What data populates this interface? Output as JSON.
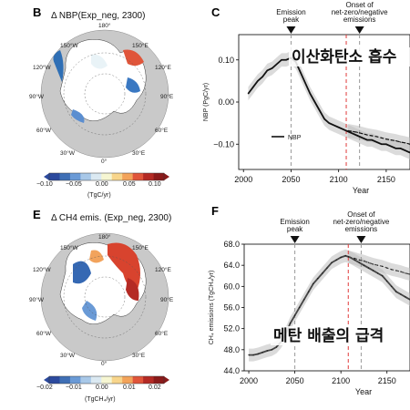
{
  "panels": {
    "B": {
      "letter": "B",
      "title": "Δ NBP(Exp_neg, 2300)",
      "colorbar_ticks": [
        "−0.10",
        "−0.05",
        "0.00",
        "0.05",
        "0.10"
      ],
      "colorbar_unit": "(TgC/yr)",
      "map_labels": {
        "top": "180°",
        "l1": "150°W",
        "r1": "150°E",
        "l2": "120°W",
        "r2": "120°E",
        "l3": "90°W",
        "r3": "90°E",
        "l4": "60°W",
        "r4": "60°E",
        "l5": "30°W",
        "r5": "30°E",
        "bottom": "0°"
      }
    },
    "E": {
      "letter": "E",
      "title": "Δ CH4 emis. (Exp_neg, 2300)",
      "colorbar_ticks": [
        "−0.02",
        "−0.01",
        "0.00",
        "0.01",
        "0.02"
      ],
      "colorbar_unit": "(TgCH₄/yr)",
      "map_labels": {
        "top": "180°",
        "l1": "150°W",
        "r1": "150°E",
        "l2": "120°W",
        "r2": "120°E",
        "l3": "90°W",
        "r3": "90°E",
        "l4": "60°W",
        "r4": "60°E",
        "l5": "30°W",
        "r5": "30°E",
        "bottom": "0°"
      }
    }
  },
  "chart_data": [
    {
      "panel": "C",
      "type": "line",
      "ylabel": "NBP (PgC/yr)",
      "xlabel": "Year",
      "xlim": [
        1995,
        2175
      ],
      "ylim": [
        -0.16,
        0.16
      ],
      "xticks": [
        2000,
        2050,
        2100,
        2150
      ],
      "yticks": [
        0.1,
        0.0,
        -0.1
      ],
      "ytick_labels": [
        "0.10",
        "0.00",
        "−0.10"
      ],
      "legend": "NBP",
      "annotations": [
        {
          "text": "Emission\npeak",
          "x": 2050
        },
        {
          "text": "Onset of\nnet-zero/negative\nemissions",
          "x": 2122
        }
      ],
      "vlines": [
        {
          "x": 2050,
          "style": "dashed-gray"
        },
        {
          "x": 2108,
          "style": "dashed-red"
        },
        {
          "x": 2122,
          "style": "dashed-gray"
        }
      ],
      "overlay_text": "이산화탄소 흡수",
      "series": [
        {
          "x": [
            2005,
            2010,
            2015,
            2020,
            2025,
            2030,
            2035,
            2040,
            2045,
            2050,
            2055,
            2060,
            2065,
            2070,
            2075,
            2080,
            2085,
            2090,
            2095,
            2100,
            2105,
            2110,
            2115,
            2120,
            2125,
            2130,
            2135,
            2140,
            2145,
            2150,
            2155,
            2160,
            2165,
            2170,
            2175
          ],
          "y": [
            0.02,
            0.035,
            0.05,
            0.06,
            0.075,
            0.08,
            0.09,
            0.1,
            0.1,
            0.105,
            0.095,
            0.07,
            0.045,
            0.02,
            0.0,
            -0.02,
            -0.04,
            -0.05,
            -0.055,
            -0.06,
            -0.065,
            -0.07,
            -0.075,
            -0.08,
            -0.085,
            -0.09,
            -0.09,
            -0.095,
            -0.1,
            -0.1,
            -0.105,
            -0.11,
            -0.11,
            -0.115,
            -0.12
          ]
        },
        {
          "x": [
            2110,
            2115,
            2120,
            2125,
            2130,
            2135,
            2140,
            2145,
            2150,
            2155,
            2160,
            2165,
            2170,
            2175
          ],
          "y": [
            -0.068,
            -0.07,
            -0.072,
            -0.075,
            -0.078,
            -0.08,
            -0.082,
            -0.085,
            -0.088,
            -0.09,
            -0.092,
            -0.095,
            -0.097,
            -0.1
          ]
        }
      ]
    },
    {
      "panel": "F",
      "type": "line",
      "ylabel": "CH₄ emissions (TgCH₄/yr)",
      "xlabel": "Year",
      "xlim": [
        1995,
        2175
      ],
      "ylim": [
        44.0,
        68.0
      ],
      "xticks": [
        2000,
        2050,
        2100,
        2150
      ],
      "yticks": [
        68.0,
        64.0,
        60.0,
        56.0,
        52.0,
        48.0,
        44.0
      ],
      "ytick_labels": [
        "68.0",
        "64.0",
        "60.0",
        "56.0",
        "52.0",
        "48.0",
        "44.0"
      ],
      "annotations": [
        {
          "text": "Emission\npeak",
          "x": 2050
        },
        {
          "text": "Onset of\nnet-zero/negative\nemissions",
          "x": 2122
        }
      ],
      "vlines": [
        {
          "x": 2050,
          "style": "dashed-gray"
        },
        {
          "x": 2108,
          "style": "dashed-red"
        },
        {
          "x": 2122,
          "style": "dashed-gray"
        }
      ],
      "overlay_text": "메탄 배출의 급격",
      "series": [
        {
          "x": [
            2000,
            2005,
            2010,
            2015,
            2020,
            2025,
            2030,
            2035,
            2040,
            2045,
            2050,
            2055,
            2060,
            2065,
            2070,
            2075,
            2080,
            2085,
            2090,
            2095,
            2100,
            2105,
            2110,
            2115,
            2120,
            2125,
            2130,
            2135,
            2140,
            2145,
            2150,
            2155,
            2160,
            2165,
            2170,
            2175
          ],
          "y": [
            47.0,
            47.0,
            47.2,
            47.5,
            47.8,
            48.0,
            48.5,
            49.5,
            51.0,
            53.0,
            54.5,
            56.0,
            57.5,
            59.0,
            60.5,
            61.5,
            62.5,
            63.5,
            64.5,
            65.0,
            65.5,
            65.8,
            65.5,
            65.0,
            64.5,
            64.0,
            63.5,
            63.0,
            62.5,
            62.0,
            61.0,
            60.0,
            59.0,
            58.5,
            58.0,
            57.5
          ]
        },
        {
          "x": [
            2108,
            2115,
            2120,
            2125,
            2130,
            2135,
            2140,
            2145,
            2150,
            2155,
            2160,
            2165,
            2170,
            2175
          ],
          "y": [
            65.6,
            65.3,
            65.0,
            64.8,
            64.5,
            64.2,
            64.0,
            63.8,
            63.5,
            63.2,
            63.0,
            62.8,
            62.5,
            62.3
          ]
        }
      ]
    }
  ]
}
